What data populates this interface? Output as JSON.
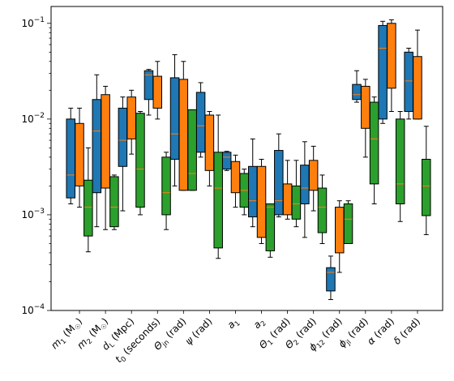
{
  "chart_data": {
    "type": "boxplot",
    "yscale": "log",
    "ylim": [
      0.0001,
      0.15
    ],
    "y_ticks": [
      {
        "value": 0.1,
        "base": "10",
        "exp": "−1"
      },
      {
        "value": 0.01,
        "base": "10",
        "exp": "−2"
      },
      {
        "value": 0.001,
        "base": "10",
        "exp": "−3"
      },
      {
        "value": 0.0001,
        "base": "10",
        "exp": "−4"
      }
    ],
    "categories": [
      {
        "main": "m",
        "sub": "1",
        "unit": " (M",
        "unitsub": "☉",
        "close": ")"
      },
      {
        "main": "m",
        "sub": "2",
        "unit": " (M",
        "unitsub": "☉",
        "close": ")"
      },
      {
        "main": "d",
        "sub": "L",
        "unit": " (Mpc)",
        "unitsub": "",
        "close": ""
      },
      {
        "main": "t",
        "sub": "0",
        "unit": " (seconds)",
        "unitsub": "",
        "close": ""
      },
      {
        "main": "Θ",
        "sub": "jn",
        "unit": " (rad)",
        "unitsub": "",
        "close": ""
      },
      {
        "main": "ψ",
        "sub": "",
        "unit": " (rad)",
        "unitsub": "",
        "close": ""
      },
      {
        "main": "a",
        "sub": "1",
        "unit": "",
        "unitsub": "",
        "close": ""
      },
      {
        "main": "a",
        "sub": "2",
        "unit": "",
        "unitsub": "",
        "close": ""
      },
      {
        "main": "Θ",
        "sub": "1",
        "unit": " (rad)",
        "unitsub": "",
        "close": ""
      },
      {
        "main": "Θ",
        "sub": "2",
        "unit": " (rad)",
        "unitsub": "",
        "close": ""
      },
      {
        "main": "ϕ",
        "sub": "12",
        "unit": " (rad)",
        "unitsub": "",
        "close": ""
      },
      {
        "main": "ϕ",
        "sub": "jl",
        "unit": " (rad)",
        "unitsub": "",
        "close": ""
      },
      {
        "main": "α",
        "sub": "",
        "unit": " (rad)",
        "unitsub": "",
        "close": ""
      },
      {
        "main": "δ",
        "sub": "",
        "unit": " (rad)",
        "unitsub": "",
        "close": ""
      }
    ],
    "series": [
      {
        "color": "#1f77b4",
        "median_color": "#ff7f0e",
        "boxes": [
          [
            0.0013,
            0.0015,
            0.0026,
            0.01,
            0.013
          ],
          [
            0.00075,
            0.0017,
            0.0075,
            0.016,
            0.029
          ],
          [
            0.0011,
            0.0032,
            0.006,
            0.013,
            0.017
          ],
          [
            0.011,
            0.016,
            0.029,
            0.032,
            0.033
          ],
          [
            0.002,
            0.0038,
            0.007,
            0.027,
            0.047
          ],
          [
            0.004,
            0.0045,
            0.0085,
            0.019,
            0.024
          ],
          [
            0.0029,
            0.003,
            0.004,
            0.0045,
            0.0046
          ],
          [
            0.00075,
            0.00095,
            0.0014,
            0.0032,
            0.0062
          ],
          [
            0.00095,
            0.001,
            0.0014,
            0.0047,
            0.007
          ],
          [
            0.00058,
            0.0013,
            0.0019,
            0.0033,
            0.0058
          ],
          [
            0.00013,
            0.00016,
            0.00025,
            0.00028,
            0.00037
          ],
          [
            0.015,
            0.016,
            0.018,
            0.023,
            0.032
          ],
          [
            0.009,
            0.01,
            0.055,
            0.095,
            0.105
          ],
          [
            0.01,
            0.012,
            0.025,
            0.05,
            0.055
          ]
        ]
      },
      {
        "color": "#ff7f0e",
        "median_color": "#ff7f0e",
        "boxes": [
          [
            0.0012,
            0.002,
            0.003,
            0.009,
            0.013
          ],
          [
            0.0007,
            0.0019,
            0.0075,
            0.018,
            0.022
          ],
          [
            0.0043,
            0.0062,
            0.011,
            0.017,
            0.02
          ],
          [
            0.01,
            0.013,
            0.018,
            0.028,
            0.04
          ],
          [
            0.0018,
            0.0018,
            0.007,
            0.026,
            0.04
          ],
          [
            0.002,
            0.0029,
            0.006,
            0.011,
            0.012
          ],
          [
            0.0012,
            0.0017,
            0.0024,
            0.0036,
            0.0042
          ],
          [
            0.0005,
            0.00058,
            0.0015,
            0.0032,
            0.0038
          ],
          [
            0.0009,
            0.001,
            0.0014,
            0.0021,
            0.0037
          ],
          [
            0.0011,
            0.0018,
            0.0024,
            0.0037,
            0.0052
          ],
          [
            0.00025,
            0.0004,
            0.00085,
            0.0012,
            0.0014
          ],
          [
            0.004,
            0.008,
            0.017,
            0.022,
            0.026
          ],
          [
            0.012,
            0.021,
            0.052,
            0.1,
            0.109
          ],
          [
            0.01,
            0.01,
            0.018,
            0.045,
            0.085
          ]
        ]
      },
      {
        "color": "#2ca02c",
        "median_color": "#ff7f0e",
        "boxes": [
          [
            0.00041,
            0.0006,
            0.0012,
            0.0023,
            0.005
          ],
          [
            0.0007,
            0.00075,
            0.0012,
            0.0025,
            0.0026
          ],
          [
            0.001,
            0.0012,
            0.003,
            0.0115,
            0.012
          ],
          [
            0.0007,
            0.001,
            0.0017,
            0.004,
            0.0045
          ],
          [
            0.0018,
            0.0018,
            0.0027,
            0.0125,
            0.0125
          ],
          [
            0.00035,
            0.00045,
            0.0019,
            0.0045,
            0.011
          ],
          [
            0.001,
            0.0012,
            0.0018,
            0.0027,
            0.003
          ],
          [
            0.00036,
            0.00042,
            0.0012,
            0.0013,
            0.0013
          ],
          [
            0.00075,
            0.0009,
            0.0013,
            0.002,
            0.0037
          ],
          [
            0.0005,
            0.00065,
            0.0012,
            0.0019,
            0.0026
          ],
          [
            0.0005,
            0.0005,
            0.0009,
            0.0013,
            0.0014
          ],
          [
            0.0013,
            0.0021,
            0.0062,
            0.015,
            0.017
          ],
          [
            0.00085,
            0.0013,
            0.0021,
            0.01,
            0.012
          ],
          [
            0.00062,
            0.00098,
            0.002,
            0.0038,
            0.0084
          ]
        ]
      }
    ]
  }
}
